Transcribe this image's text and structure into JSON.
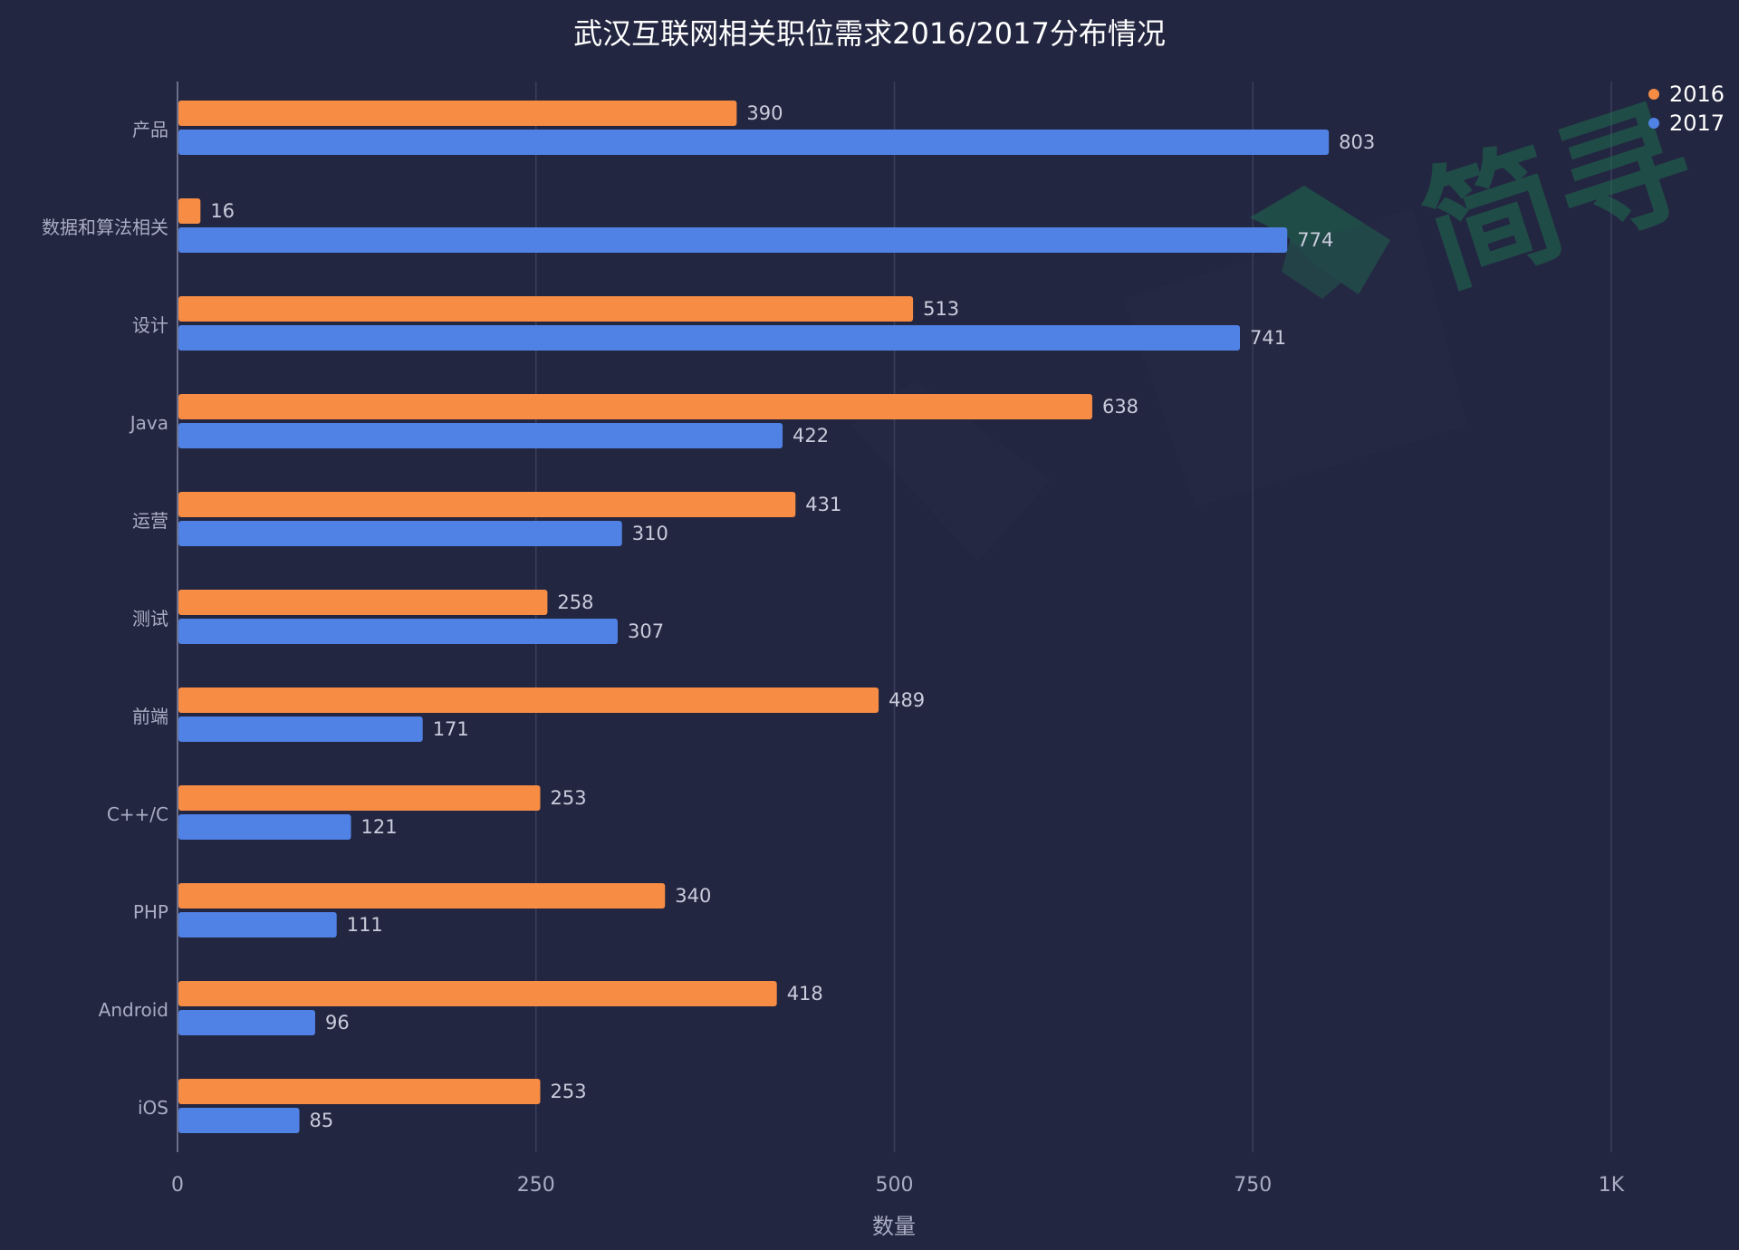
{
  "chart_data": {
    "type": "bar",
    "orientation": "horizontal",
    "title": "武汉互联网相关职位需求2016/2017分布情况",
    "xlabel": "数量",
    "ylabel": "",
    "xlim": [
      0,
      1000
    ],
    "x_ticks": [
      0,
      250,
      500,
      750,
      1000
    ],
    "x_tick_labels": [
      "0",
      "250",
      "500",
      "750",
      "1K"
    ],
    "grid": true,
    "legend_position": "top-right",
    "categories": [
      "产品",
      "数据和算法相关",
      "设计",
      "Java",
      "运营",
      "测试",
      "前端",
      "C++/C",
      "PHP",
      "Android",
      "iOS"
    ],
    "series": [
      {
        "name": "2016",
        "color": "#f78c45",
        "values": [
          390,
          16,
          513,
          638,
          431,
          258,
          489,
          253,
          340,
          418,
          253
        ]
      },
      {
        "name": "2017",
        "color": "#5082e6",
        "values": [
          803,
          774,
          741,
          422,
          310,
          307,
          171,
          121,
          111,
          96,
          85
        ]
      }
    ]
  },
  "watermark": {
    "text": "简寻",
    "color": "#1f6b50"
  },
  "colors": {
    "background": "#232640",
    "grid": "#3a3e5a",
    "axis": "#6a6e8a"
  }
}
